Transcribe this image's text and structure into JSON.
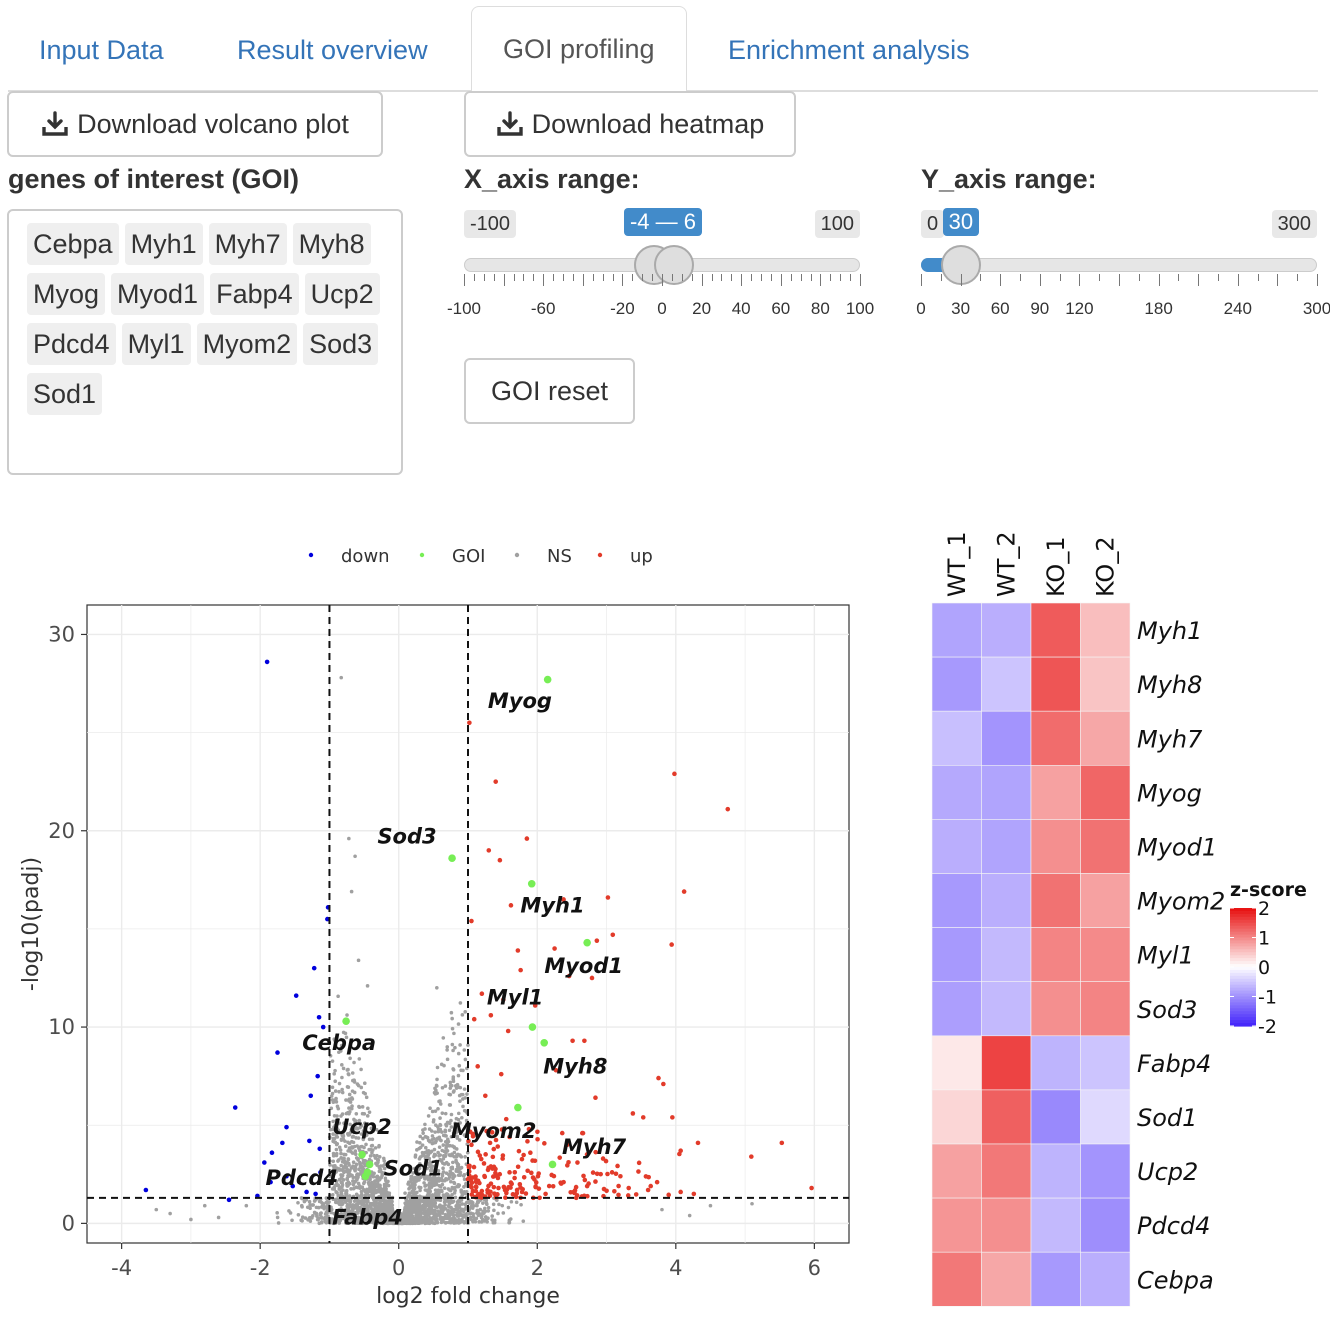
{
  "tabs": [
    {
      "label": "Input Data"
    },
    {
      "label": "Result overview"
    },
    {
      "label": "GOI profiling",
      "active": true
    },
    {
      "label": "Enrichment analysis"
    }
  ],
  "buttons": {
    "download_volcano": "Download volcano plot",
    "download_heatmap": "Download heatmap",
    "goi_reset": "GOI reset"
  },
  "goi": {
    "label": "genes of interest (GOI)",
    "chips": [
      "Cebpa",
      "Myh1",
      "Myh7",
      "Myh8",
      "Myog",
      "Myod1",
      "Fabp4",
      "Ucp2",
      "Pdcd4",
      "Myl1",
      "Myom2",
      "Sod3",
      "Sod1"
    ]
  },
  "x_slider": {
    "label": "X_axis range:",
    "min_label": "-100",
    "max_label": "100",
    "value_label": "-4 — 6",
    "min": -100,
    "max": 100,
    "low": -4,
    "high": 6,
    "ticks": [
      "-100",
      "-60",
      "-20",
      "0",
      "20",
      "40",
      "60",
      "80",
      "100"
    ],
    "tick_values": [
      -100,
      -60,
      -20,
      0,
      20,
      40,
      60,
      80,
      100
    ]
  },
  "y_slider": {
    "label": "Y_axis range:",
    "min_label": "0",
    "max_label": "300",
    "value_label": "30",
    "min": 0,
    "max": 300,
    "value": 30,
    "ticks": [
      "0",
      "30",
      "60",
      "90",
      "120",
      "180",
      "240",
      "300"
    ],
    "tick_values": [
      0,
      30,
      60,
      90,
      120,
      180,
      240,
      300
    ]
  },
  "colors": {
    "down": "#0000dd",
    "goi": "#77ee55",
    "ns": "#a0a0a0",
    "up": "#e23b2a",
    "link": "#3474b8",
    "slider_blue": "#428bca"
  },
  "chart_data": [
    {
      "type": "scatter",
      "title": "",
      "xlabel": "log2 fold change",
      "ylabel": "-log10(padj)",
      "xlim": [
        -4.5,
        6.5
      ],
      "ylim": [
        -1,
        31.5
      ],
      "xticks": [
        -4,
        -2,
        0,
        2,
        4,
        6
      ],
      "yticks": [
        0,
        10,
        20,
        30
      ],
      "thresholds": {
        "x": [
          -1,
          1
        ],
        "y": 1.3
      },
      "legend": [
        {
          "name": "down",
          "color": "#0000dd"
        },
        {
          "name": "GOI",
          "color": "#77ee55"
        },
        {
          "name": "NS",
          "color": "#a0a0a0"
        },
        {
          "name": "up",
          "color": "#e23b2a"
        }
      ],
      "goi_points": [
        {
          "gene": "Myog",
          "x": 2.15,
          "y": 27.7
        },
        {
          "gene": "Sod3",
          "x": 0.77,
          "y": 18.6
        },
        {
          "gene": "Myh1",
          "x": 1.92,
          "y": 17.3
        },
        {
          "gene": "Myod1",
          "x": 2.72,
          "y": 14.3
        },
        {
          "gene": "Myl1",
          "x": 1.93,
          "y": 10.0
        },
        {
          "gene": "Cebpa",
          "x": -0.76,
          "y": 10.3
        },
        {
          "gene": "Myh8",
          "x": 2.1,
          "y": 9.2
        },
        {
          "gene": "Myom2",
          "x": 1.72,
          "y": 5.9
        },
        {
          "gene": "Ucp2",
          "x": -0.53,
          "y": 3.5
        },
        {
          "gene": "Myh7",
          "x": 2.22,
          "y": 3.0
        },
        {
          "gene": "Sod1",
          "x": -0.42,
          "y": 3.0
        },
        {
          "gene": "Pdcd4",
          "x": -0.48,
          "y": 2.4
        },
        {
          "gene": "Fabp4",
          "x": -0.45,
          "y": 2.6
        }
      ],
      "up_points": [
        [
          1.02,
          25.5
        ],
        [
          1.4,
          22.5
        ],
        [
          3.98,
          22.9
        ],
        [
          4.75,
          21.1
        ],
        [
          1.3,
          19.0
        ],
        [
          1.46,
          18.5
        ],
        [
          1.85,
          19.6
        ],
        [
          3.02,
          16.6
        ],
        [
          4.12,
          16.9
        ],
        [
          1.05,
          15.4
        ],
        [
          1.62,
          16.2
        ],
        [
          2.38,
          16.5
        ],
        [
          2.86,
          14.4
        ],
        [
          3.09,
          14.7
        ],
        [
          1.72,
          13.9
        ],
        [
          2.25,
          14.0
        ],
        [
          3.94,
          14.2
        ],
        [
          1.76,
          12.9
        ],
        [
          2.46,
          12.6
        ],
        [
          2.79,
          12.5
        ],
        [
          1.2,
          11.7
        ],
        [
          1.51,
          11.4
        ],
        [
          1.97,
          11.1
        ],
        [
          1.09,
          10.4
        ],
        [
          1.33,
          10.6
        ],
        [
          1.58,
          9.8
        ],
        [
          2.51,
          9.3
        ],
        [
          2.68,
          9.3
        ],
        [
          3.75,
          7.4
        ],
        [
          3.82,
          7.1
        ],
        [
          1.14,
          8.0
        ],
        [
          1.48,
          7.6
        ],
        [
          2.27,
          7.8
        ],
        [
          2.84,
          6.4
        ],
        [
          3.38,
          5.6
        ],
        [
          3.53,
          5.4
        ],
        [
          3.95,
          5.4
        ],
        [
          4.07,
          3.7
        ],
        [
          4.32,
          4.1
        ],
        [
          5.09,
          3.4
        ],
        [
          5.53,
          4.1
        ],
        [
          5.96,
          1.8
        ],
        [
          4.26,
          1.5
        ],
        [
          4.07,
          1.6
        ],
        [
          3.6,
          1.7
        ],
        [
          3.73,
          2.1
        ],
        [
          3.08,
          2.6
        ],
        [
          3.2,
          2.4
        ],
        [
          2.95,
          3.3
        ],
        [
          2.65,
          4.6
        ],
        [
          2.43,
          4.0
        ],
        [
          1.25,
          6.5
        ],
        [
          1.6,
          4.4
        ],
        [
          1.88,
          4.8
        ],
        [
          1.05,
          4.0
        ],
        [
          1.33,
          2.9
        ],
        [
          1.6,
          2.6
        ],
        [
          2.01,
          2.4
        ],
        [
          2.38,
          2.1
        ],
        [
          2.72,
          1.9
        ],
        [
          1.12,
          2.2
        ],
        [
          1.44,
          1.8
        ],
        [
          1.78,
          1.6
        ],
        [
          2.12,
          1.5
        ],
        [
          3.32,
          1.8
        ],
        [
          1.5,
          3.3
        ],
        [
          1.9,
          3.6
        ],
        [
          2.58,
          3.1
        ]
      ],
      "down_points": [
        [
          -1.9,
          28.6
        ],
        [
          -1.02,
          16.1
        ],
        [
          -1.03,
          15.5
        ],
        [
          -1.22,
          13.0
        ],
        [
          -1.48,
          11.6
        ],
        [
          -1.15,
          10.5
        ],
        [
          -1.09,
          10.0
        ],
        [
          -1.17,
          7.5
        ],
        [
          -1.75,
          8.7
        ],
        [
          -1.27,
          6.5
        ],
        [
          -2.36,
          5.9
        ],
        [
          -1.62,
          4.9
        ],
        [
          -1.29,
          4.2
        ],
        [
          -1.14,
          3.8
        ],
        [
          -1.68,
          4.1
        ],
        [
          -1.83,
          3.6
        ],
        [
          -1.94,
          3.1
        ],
        [
          -1.62,
          2.4
        ],
        [
          -1.85,
          2.1
        ],
        [
          -2.04,
          1.4
        ],
        [
          -1.33,
          1.6
        ],
        [
          -1.53,
          1.9
        ],
        [
          -1.13,
          2.6
        ],
        [
          -3.65,
          1.7
        ],
        [
          -2.45,
          1.2
        ],
        [
          -1.2,
          1.5
        ]
      ]
    },
    {
      "type": "heatmap",
      "columns": [
        "WT_1",
        "WT_2",
        "KO_1",
        "KO_2"
      ],
      "rows": [
        "Myh1",
        "Myh8",
        "Myh7",
        "Myog",
        "Myod1",
        "Myom2",
        "Myl1",
        "Sod3",
        "Fabp4",
        "Sod1",
        "Ucp2",
        "Pdcd4",
        "Cebpa"
      ],
      "values": [
        [
          -0.85,
          -0.75,
          1.4,
          0.55
        ],
        [
          -0.95,
          -0.55,
          1.45,
          0.5
        ],
        [
          -0.6,
          -1.0,
          1.25,
          0.75
        ],
        [
          -0.8,
          -0.85,
          0.8,
          1.3
        ],
        [
          -0.75,
          -0.85,
          0.95,
          1.2
        ],
        [
          -0.95,
          -0.75,
          1.2,
          0.8
        ],
        [
          -0.95,
          -0.65,
          1.05,
          1.0
        ],
        [
          -0.9,
          -0.65,
          0.95,
          1.05
        ],
        [
          0.2,
          1.6,
          -0.7,
          -0.55
        ],
        [
          0.35,
          1.35,
          -1.1,
          -0.35
        ],
        [
          0.8,
          1.15,
          -0.7,
          -1.0
        ],
        [
          0.9,
          0.95,
          -0.65,
          -1.05
        ],
        [
          1.15,
          0.75,
          -0.95,
          -0.75
        ]
      ],
      "legend_title": "z-score",
      "legend_ticks": [
        "2",
        "1",
        "0",
        "-1",
        "-2"
      ],
      "legend_tick_values": [
        2,
        1,
        0,
        -1,
        -2
      ],
      "range": [
        -2,
        2
      ]
    }
  ]
}
